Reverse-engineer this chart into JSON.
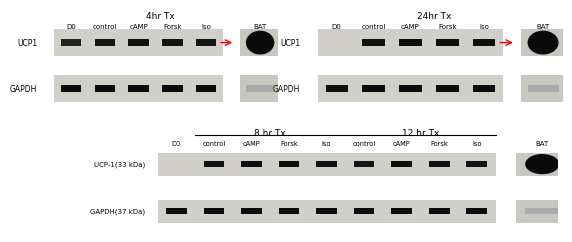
{
  "top_left": {
    "title": "4hr Tx",
    "col_labels": [
      "D0",
      "control",
      "cAMP",
      "Forsk",
      "Iso",
      "BAT"
    ],
    "row_labels": [
      "UCP1",
      "GAPDH"
    ],
    "ucp1_bands": [
      0.15,
      0.45,
      0.55,
      0.5,
      0.45,
      1.0
    ],
    "gapdh_bands": [
      0.7,
      0.75,
      0.75,
      0.75,
      0.7,
      0.15
    ],
    "arrow_at": 4
  },
  "top_right": {
    "title": "24hr Tx",
    "col_labels": [
      "D0",
      "control",
      "cAMP",
      "Forsk",
      "Iso",
      "BAT"
    ],
    "row_labels": [
      "UCP1",
      "GAPDH"
    ],
    "ucp1_bands": [
      0.05,
      0.55,
      0.7,
      0.65,
      0.6,
      1.0
    ],
    "gapdh_bands": [
      0.6,
      0.75,
      0.75,
      0.75,
      0.7,
      0.15
    ],
    "arrow_at": 4
  },
  "bottom": {
    "title_8hr": "8 hr Tx",
    "title_12hr": "12 hr Tx",
    "col_labels": [
      "D0",
      "control",
      "cAMP",
      "Forsk",
      "Iso",
      "control",
      "cAMP",
      "Forsk",
      "Iso",
      "BAT"
    ],
    "ucp1_label": "UCP-1(33 kDa)",
    "gapdh_label": "GAPDH(37 kDa)",
    "ucp1_bands": [
      0.05,
      0.55,
      0.65,
      0.6,
      0.55,
      0.45,
      0.6,
      0.55,
      0.5,
      1.0
    ],
    "gapdh_bands": [
      0.75,
      0.75,
      0.75,
      0.75,
      0.75,
      0.75,
      0.75,
      0.75,
      0.75,
      0.2
    ]
  }
}
